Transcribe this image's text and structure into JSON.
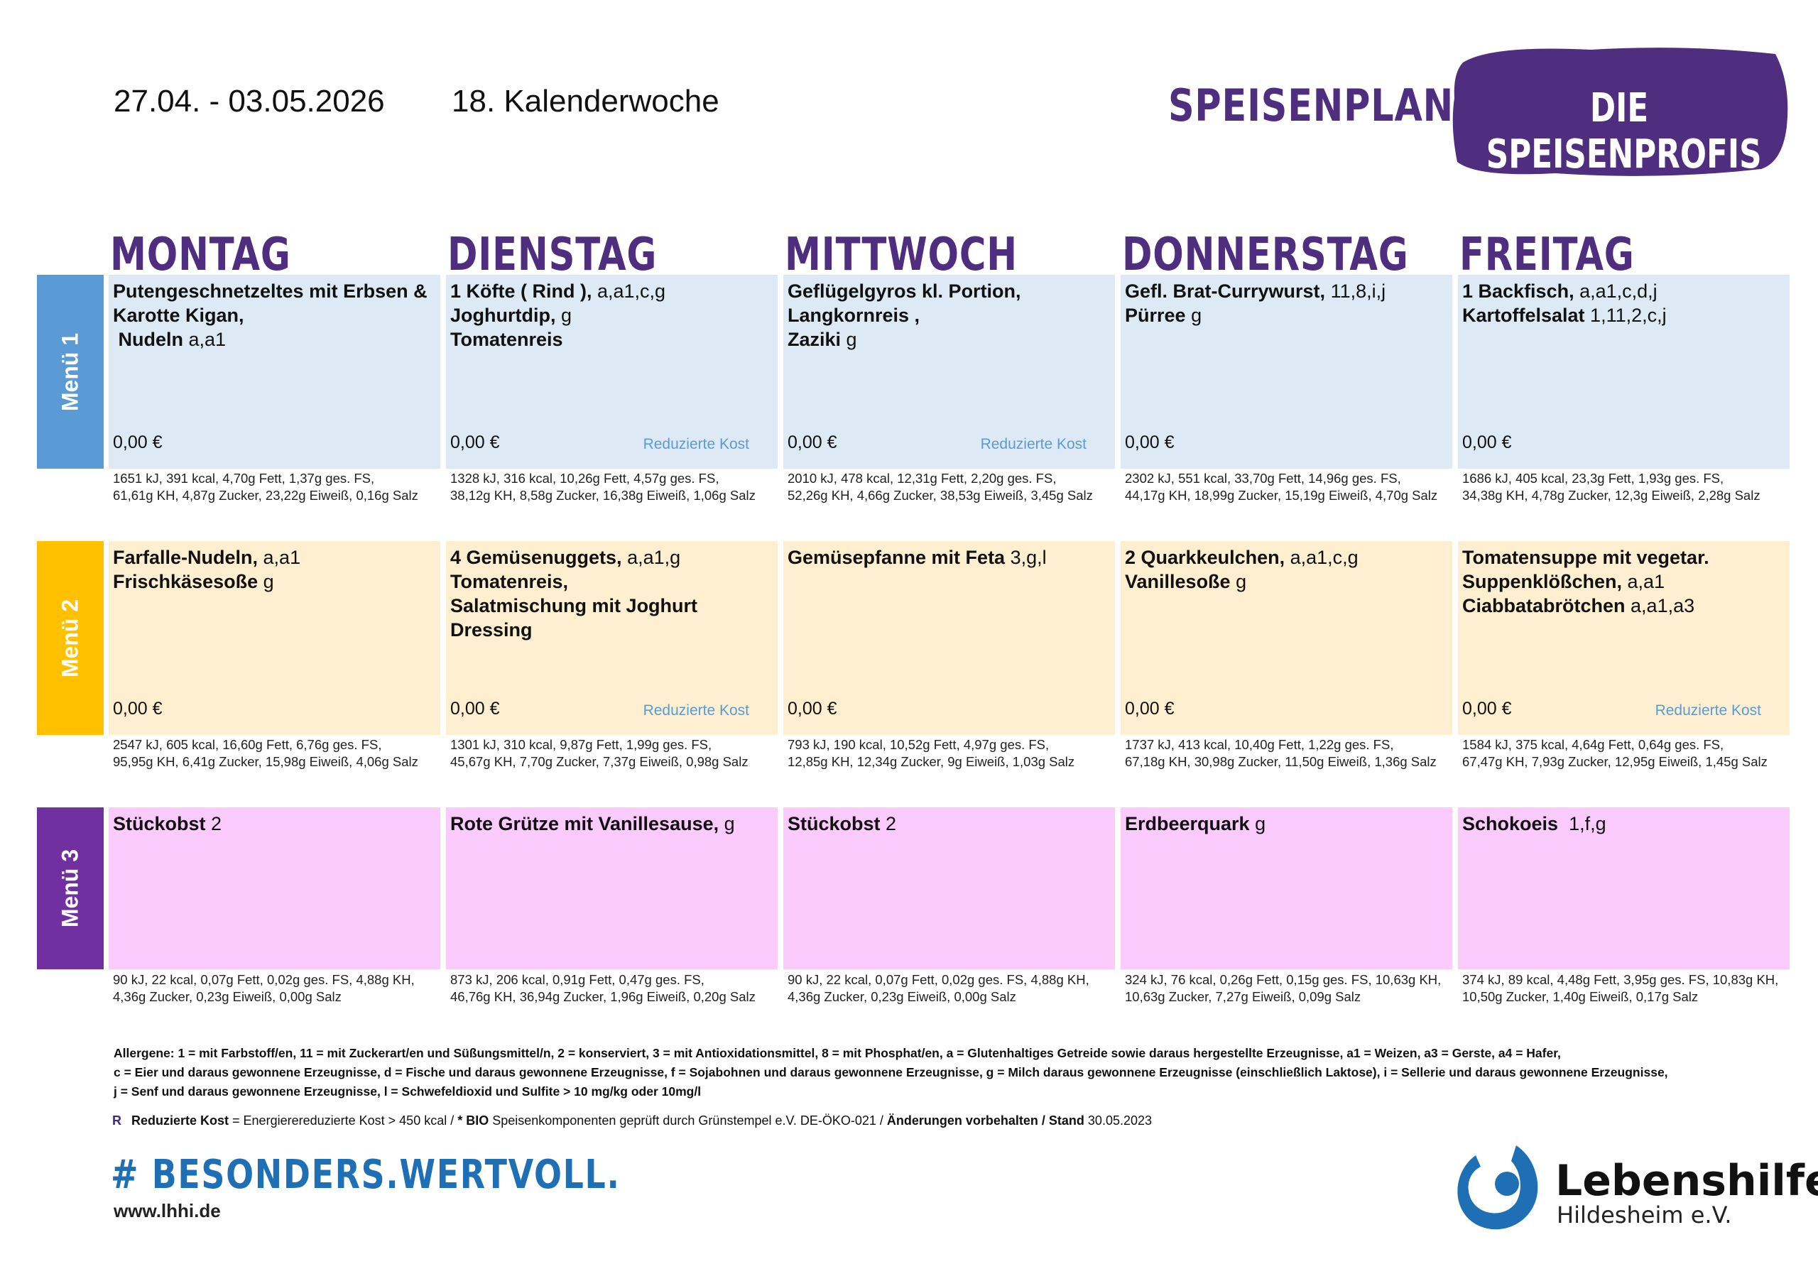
{
  "header": {
    "dates": "27.04. - 03.05.2026",
    "week": "18. Kalenderwoche",
    "title": "SPEISENPLAN",
    "badge": "DIE SPEISENPROFIS"
  },
  "days": [
    "MONTAG",
    "DIENSTAG",
    "MITTWOCH",
    "DONNERSTAG",
    "FREITAG"
  ],
  "colors": {
    "purple": "#4f2d7f",
    "menu1_side": "#5b9bd5",
    "menu1_bg": "#ddeaf6",
    "menu2_side": "#ffc000",
    "menu2_bg": "#fdefcf",
    "menu3_side": "#7030a0",
    "menu3_bg": "#fccbfd"
  },
  "menus": [
    {
      "label": "Menü 1",
      "cells": [
        {
          "lines": [
            {
              "name": "Putengeschnetzeltes mit Erbsen &",
              "allergens": ""
            },
            {
              "name": "Karotte Kigan,",
              "allergens": ""
            },
            {
              "name": " Nudeln",
              "allergens": " a,a1"
            }
          ],
          "price": "0,00 €",
          "tag": "",
          "nutrition": [
            "1651 kJ, 391 kcal, 4,70g Fett, 1,37g ges. FS,",
            "61,61g KH, 4,87g Zucker, 23,22g Eiweiß, 0,16g Salz"
          ]
        },
        {
          "lines": [
            {
              "name": "1 Köfte ( Rind ),",
              "allergens": " a,a1,c,g"
            },
            {
              "name": "Joghurtdip,",
              "allergens": " g"
            },
            {
              "name": "Tomatenreis",
              "allergens": ""
            }
          ],
          "price": "0,00 €",
          "tag": "Reduzierte Kost",
          "nutrition": [
            "1328 kJ, 316 kcal, 10,26g Fett, 4,57g ges. FS,",
            "38,12g KH, 8,58g Zucker, 16,38g Eiweiß, 1,06g Salz"
          ]
        },
        {
          "lines": [
            {
              "name": "Geflügelgyros kl. Portion,",
              "allergens": ""
            },
            {
              "name": "Langkornreis ,",
              "allergens": ""
            },
            {
              "name": "Zaziki",
              "allergens": " g"
            }
          ],
          "price": "0,00 €",
          "tag": "Reduzierte Kost",
          "nutrition": [
            "2010 kJ, 478 kcal, 12,31g Fett, 2,20g ges. FS,",
            "52,26g KH, 4,66g Zucker, 38,53g Eiweiß, 3,45g Salz"
          ]
        },
        {
          "lines": [
            {
              "name": "Gefl. Brat-Currywurst,",
              "allergens": " 11,8,i,j"
            },
            {
              "name": "Pürree",
              "allergens": " g"
            }
          ],
          "price": "0,00 €",
          "tag": "",
          "nutrition": [
            "2302 kJ, 551 kcal, 33,70g Fett, 14,96g ges. FS,",
            "44,17g KH, 18,99g Zucker, 15,19g Eiweiß, 4,70g Salz"
          ]
        },
        {
          "lines": [
            {
              "name": "1 Backfisch,",
              "allergens": " a,a1,c,d,j"
            },
            {
              "name": "Kartoffelsalat",
              "allergens": " 1,11,2,c,j"
            }
          ],
          "price": "0,00 €",
          "tag": "",
          "nutrition": [
            "1686 kJ, 405 kcal, 23,3g Fett, 1,93g ges. FS,",
            "34,38g KH, 4,78g Zucker, 12,3g Eiweiß, 2,28g Salz"
          ]
        }
      ]
    },
    {
      "label": "Menü 2",
      "cells": [
        {
          "lines": [
            {
              "name": "Farfalle-Nudeln,",
              "allergens": " a,a1"
            },
            {
              "name": "Frischkäsesoße",
              "allergens": " g"
            }
          ],
          "price": "0,00 €",
          "tag": "",
          "nutrition": [
            "2547 kJ, 605 kcal, 16,60g Fett, 6,76g ges. FS,",
            "95,95g KH, 6,41g Zucker, 15,98g Eiweiß, 4,06g Salz"
          ]
        },
        {
          "lines": [
            {
              "name": "4 Gemüsenuggets,",
              "allergens": " a,a1,g"
            },
            {
              "name": "Tomatenreis,",
              "allergens": ""
            },
            {
              "name": "Salatmischung mit Joghurt",
              "allergens": ""
            },
            {
              "name": "Dressing",
              "allergens": ""
            }
          ],
          "price": "0,00 €",
          "tag": "Reduzierte Kost",
          "nutrition": [
            "1301 kJ, 310 kcal, 9,87g Fett, 1,99g ges. FS,",
            "45,67g KH, 7,70g Zucker, 7,37g Eiweiß, 0,98g Salz"
          ]
        },
        {
          "lines": [
            {
              "name": "Gemüsepfanne mit Feta",
              "allergens": " 3,g,l"
            }
          ],
          "price": "0,00 €",
          "tag": "",
          "nutrition": [
            "793 kJ, 190 kcal, 10,52g Fett, 4,97g ges. FS,",
            "12,85g KH, 12,34g Zucker, 9g Eiweiß, 1,03g Salz"
          ]
        },
        {
          "lines": [
            {
              "name": "2 Quarkkeulchen,",
              "allergens": " a,a1,c,g"
            },
            {
              "name": "Vanillesoße",
              "allergens": " g"
            }
          ],
          "price": "0,00 €",
          "tag": "",
          "nutrition": [
            "1737 kJ, 413 kcal, 10,40g Fett, 1,22g ges. FS,",
            "67,18g KH, 30,98g Zucker, 11,50g Eiweiß, 1,36g Salz"
          ]
        },
        {
          "lines": [
            {
              "name": "Tomatensuppe mit vegetar.",
              "allergens": ""
            },
            {
              "name": "Suppenklößchen,",
              "allergens": " a,a1"
            },
            {
              "name": "Ciabbatabrötchen",
              "allergens": " a,a1,a3"
            }
          ],
          "price": "0,00 €",
          "tag": "Reduzierte Kost",
          "nutrition": [
            "1584 kJ, 375 kcal, 4,64g Fett, 0,64g ges. FS,",
            "67,47g KH, 7,93g Zucker, 12,95g Eiweiß, 1,45g Salz"
          ]
        }
      ]
    },
    {
      "label": "Menü 3",
      "cells": [
        {
          "lines": [
            {
              "name": "Stückobst",
              "allergens": " 2"
            }
          ],
          "price": "",
          "tag": "",
          "nutrition": [
            "90 kJ, 22 kcal, 0,07g Fett, 0,02g ges. FS, 4,88g KH,",
            "4,36g Zucker, 0,23g Eiweiß, 0,00g Salz"
          ]
        },
        {
          "lines": [
            {
              "name": "Rote Grütze mit Vanillesause,",
              "allergens": " g"
            }
          ],
          "price": "",
          "tag": "",
          "nutrition": [
            "873 kJ, 206 kcal, 0,91g Fett, 0,47g ges. FS,",
            "46,76g KH, 36,94g Zucker, 1,96g Eiweiß, 0,20g Salz"
          ]
        },
        {
          "lines": [
            {
              "name": "Stückobst",
              "allergens": " 2"
            }
          ],
          "price": "",
          "tag": "",
          "nutrition": [
            "90 kJ, 22 kcal, 0,07g Fett, 0,02g ges. FS, 4,88g KH,",
            "4,36g Zucker, 0,23g Eiweiß, 0,00g Salz"
          ]
        },
        {
          "lines": [
            {
              "name": "Erdbeerquark",
              "allergens": " g"
            }
          ],
          "price": "",
          "tag": "",
          "nutrition": [
            "324 kJ, 76 kcal, 0,26g Fett, 0,15g ges. FS, 10,63g KH,",
            "10,63g Zucker, 7,27g Eiweiß, 0,09g Salz"
          ]
        },
        {
          "lines": [
            {
              "name": "Schokoeis",
              "allergens": "  1,f,g"
            }
          ],
          "price": "",
          "tag": "",
          "nutrition": [
            "374 kJ, 89 kcal, 4,48g Fett, 3,95g ges. FS, 10,83g KH,",
            "10,50g Zucker, 1,40g Eiweiß, 0,17g Salz"
          ]
        }
      ]
    }
  ],
  "footer": {
    "allergens": [
      "Allergene: 1 = mit Farbstoff/en, 11 = mit Zuckerart/en und Süßungsmittel/n, 2 = konserviert, 3 = mit Antioxidationsmittel, 8 = mit Phosphat/en, a = Glutenhaltiges Getreide sowie daraus hergestellte Erzeugnisse, a1 = Weizen, a3 = Gerste, a4 = Hafer,",
      "c = Eier und daraus gewonnene Erzeugnisse, d = Fische und daraus gewonnene Erzeugnisse, f = Sojabohnen und daraus gewonnene Erzeugnisse, g = Milch daraus gewonnene Erzeugnisse (einschließlich Laktose), i = Sellerie und daraus gewonnene Erzeugnisse,",
      "j = Senf und daraus gewonnene Erzeugnisse, l = Schwefeldioxid und Sulfite > 10 mg/kg oder 10mg/l"
    ],
    "legend": {
      "r": "R",
      "reduced": "Reduzierte Kost",
      "reduced_desc": " = Energierereduzierte Kost > 450 kcal / ",
      "bio": "* BIO",
      "bio_desc": " Speisenkomponenten geprüft durch Grünstempel e.V. DE-ÖKO-021 / ",
      "changes": "Änderungen vorbehalten / Stand",
      "date": " 30.05.2023"
    },
    "hashtag": "# BESONDERS.WERTVOLL.",
    "website": "www.lhhi.de",
    "org_name": "Lebenshilfe",
    "org_sub": "Hildesheim e.V."
  }
}
